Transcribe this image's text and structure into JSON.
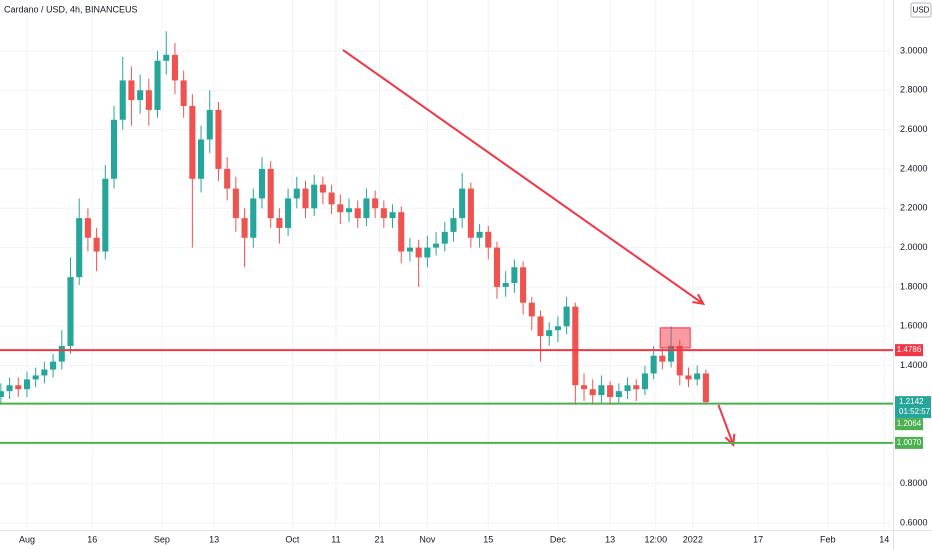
{
  "chart_data": {
    "type": "candlestick",
    "title": "Cardano / USD, 4h, BINANCEUS",
    "currency": "USD",
    "x": [
      -6,
      -4,
      -2,
      0,
      2,
      4,
      6,
      8,
      10,
      12,
      14,
      16,
      18,
      20,
      22,
      24,
      26,
      28,
      30,
      32,
      34,
      36,
      38,
      40,
      42,
      44,
      46,
      48,
      50,
      52,
      54,
      56,
      58,
      60,
      62,
      64,
      66,
      68,
      70,
      72,
      74,
      76,
      78,
      80,
      82,
      84,
      86,
      88,
      90,
      92,
      94,
      96,
      98,
      100,
      102,
      104,
      106,
      108,
      110,
      112,
      114,
      116,
      118,
      120,
      122,
      124,
      126,
      128,
      130,
      132,
      134,
      136,
      138,
      140,
      142,
      144,
      146,
      148,
      150,
      152,
      154,
      156
    ],
    "open": [
      1.24,
      1.27,
      1.3,
      1.28,
      1.33,
      1.35,
      1.38,
      1.42,
      1.5,
      1.85,
      2.15,
      2.05,
      1.98,
      2.35,
      2.65,
      2.85,
      2.75,
      2.8,
      2.7,
      2.95,
      2.98,
      2.85,
      2.72,
      2.35,
      2.55,
      2.7,
      2.4,
      2.3,
      2.15,
      2.05,
      2.25,
      2.4,
      2.15,
      2.1,
      2.25,
      2.3,
      2.2,
      2.32,
      2.28,
      2.22,
      2.18,
      2.2,
      2.15,
      2.25,
      2.2,
      2.15,
      2.18,
      1.98,
      2.0,
      1.95,
      2.0,
      2.02,
      2.08,
      2.15,
      2.3,
      2.05,
      2.08,
      2.0,
      1.8,
      1.82,
      1.9,
      1.72,
      1.65,
      1.55,
      1.58,
      1.6,
      1.7,
      1.3,
      1.28,
      1.25,
      1.3,
      1.24,
      1.27,
      1.3,
      1.28,
      1.36,
      1.45,
      1.42,
      1.5,
      1.35,
      1.33,
      1.36
    ],
    "high": [
      1.31,
      1.34,
      1.34,
      1.37,
      1.39,
      1.42,
      1.46,
      1.58,
      1.95,
      2.25,
      2.2,
      2.1,
      2.42,
      2.72,
      2.97,
      2.92,
      2.88,
      2.86,
      3.0,
      3.1,
      3.04,
      2.9,
      2.78,
      2.62,
      2.8,
      2.74,
      2.46,
      2.36,
      2.2,
      2.3,
      2.46,
      2.44,
      2.2,
      2.3,
      2.36,
      2.34,
      2.37,
      2.36,
      2.32,
      2.27,
      2.25,
      2.24,
      2.3,
      2.29,
      2.24,
      2.22,
      2.21,
      2.05,
      2.04,
      2.06,
      2.08,
      2.13,
      2.2,
      2.38,
      2.33,
      2.12,
      2.11,
      2.03,
      1.88,
      1.94,
      1.93,
      1.75,
      1.68,
      1.62,
      1.65,
      1.75,
      1.72,
      1.36,
      1.33,
      1.35,
      1.32,
      1.31,
      1.34,
      1.33,
      1.4,
      1.5,
      1.49,
      1.6,
      1.53,
      1.39,
      1.4,
      1.38
    ],
    "low": [
      1.2,
      1.23,
      1.24,
      1.24,
      1.29,
      1.31,
      1.34,
      1.38,
      1.46,
      1.81,
      1.98,
      1.88,
      1.94,
      2.3,
      2.6,
      2.62,
      2.68,
      2.62,
      2.66,
      2.88,
      2.78,
      2.66,
      2.0,
      2.28,
      2.48,
      2.34,
      2.24,
      2.08,
      1.9,
      2.0,
      2.2,
      2.1,
      2.02,
      2.06,
      2.2,
      2.15,
      2.16,
      2.22,
      2.17,
      2.12,
      2.13,
      2.1,
      2.11,
      2.15,
      2.1,
      2.1,
      1.92,
      1.93,
      1.8,
      1.9,
      1.96,
      1.98,
      2.03,
      2.1,
      2.0,
      2.0,
      1.94,
      1.74,
      1.75,
      1.77,
      1.66,
      1.58,
      1.42,
      1.5,
      1.52,
      1.56,
      1.2,
      1.22,
      1.2,
      1.21,
      1.2,
      1.21,
      1.23,
      1.22,
      1.25,
      1.33,
      1.38,
      1.39,
      1.3,
      1.29,
      1.3,
      1.2
    ],
    "close": [
      1.27,
      1.3,
      1.28,
      1.33,
      1.35,
      1.38,
      1.42,
      1.5,
      1.85,
      2.15,
      2.05,
      1.98,
      2.35,
      2.65,
      2.85,
      2.75,
      2.8,
      2.7,
      2.95,
      2.98,
      2.85,
      2.72,
      2.35,
      2.55,
      2.7,
      2.4,
      2.3,
      2.15,
      2.05,
      2.25,
      2.4,
      2.15,
      2.1,
      2.25,
      2.3,
      2.2,
      2.32,
      2.28,
      2.22,
      2.18,
      2.2,
      2.15,
      2.25,
      2.2,
      2.15,
      2.18,
      1.98,
      2.0,
      1.95,
      2.0,
      2.02,
      2.08,
      2.15,
      2.3,
      2.05,
      2.08,
      2.0,
      1.8,
      1.82,
      1.9,
      1.72,
      1.65,
      1.55,
      1.58,
      1.6,
      1.7,
      1.3,
      1.28,
      1.25,
      1.3,
      1.24,
      1.27,
      1.3,
      1.28,
      1.36,
      1.45,
      1.42,
      1.5,
      1.35,
      1.33,
      1.36,
      1.2142
    ],
    "up_color": "#26a69a",
    "down_color": "#ef5350",
    "xlim": [
      -6.2,
      199
    ],
    "xticks": [
      {
        "value": 0,
        "label": "Aug"
      },
      {
        "value": 15,
        "label": "16"
      },
      {
        "value": 31,
        "label": "Sep"
      },
      {
        "value": 43,
        "label": "13"
      },
      {
        "value": 61,
        "label": "Oct"
      },
      {
        "value": 71,
        "label": "11"
      },
      {
        "value": 81,
        "label": "21"
      },
      {
        "value": 92,
        "label": "Nov"
      },
      {
        "value": 106,
        "label": "15"
      },
      {
        "value": 122,
        "label": "Dec"
      },
      {
        "value": 134,
        "label": "13"
      },
      {
        "value": 144.5,
        "label": "12:00"
      },
      {
        "value": 153,
        "label": "2022"
      },
      {
        "value": 168,
        "label": "17"
      },
      {
        "value": 184,
        "label": "Feb"
      },
      {
        "value": 197,
        "label": "14"
      }
    ],
    "ylim": [
      0.564,
      3.259
    ],
    "yticks": [
      {
        "value": 0.6,
        "label": "0.6000"
      },
      {
        "value": 0.8,
        "label": "0.8000"
      },
      {
        "value": 1.4,
        "label": "1.4000"
      },
      {
        "value": 1.6,
        "label": "1.6000"
      },
      {
        "value": 1.8,
        "label": "1.8000"
      },
      {
        "value": 2,
        "label": "2.0000"
      },
      {
        "value": 2.2,
        "label": "2.2000"
      },
      {
        "value": 2.4,
        "label": "2.4000"
      },
      {
        "value": 2.6,
        "label": "2.6000"
      },
      {
        "value": 2.8,
        "label": "2.8000"
      },
      {
        "value": 3,
        "label": "3.0000"
      }
    ],
    "grid": true,
    "levels": [
      {
        "value": 1.4786,
        "label": "1.4786",
        "color": "#f23645"
      },
      {
        "value": 1.2064,
        "label": "1.2064",
        "color": "#4caf50"
      },
      {
        "value": 1.007,
        "label": "1.0070",
        "color": "#4caf50"
      }
    ],
    "last_price": {
      "value": 1.2142,
      "label": "1.2142",
      "countdown": "01:52:57",
      "color": "#26a69a"
    },
    "zones": [
      {
        "x0": 145.5,
        "x1": 152.4,
        "y0": 1.49,
        "y1": 1.592,
        "color": "#f23645"
      }
    ],
    "arrows": [
      {
        "x0": 72.6,
        "y0": 3.005,
        "x1": 155.4,
        "y1": 1.714,
        "color": "#f23645"
      },
      {
        "x0": 158.9,
        "y0": 1.2,
        "x1": 162.3,
        "y1": 0.997,
        "color": "#f23645"
      }
    ]
  }
}
